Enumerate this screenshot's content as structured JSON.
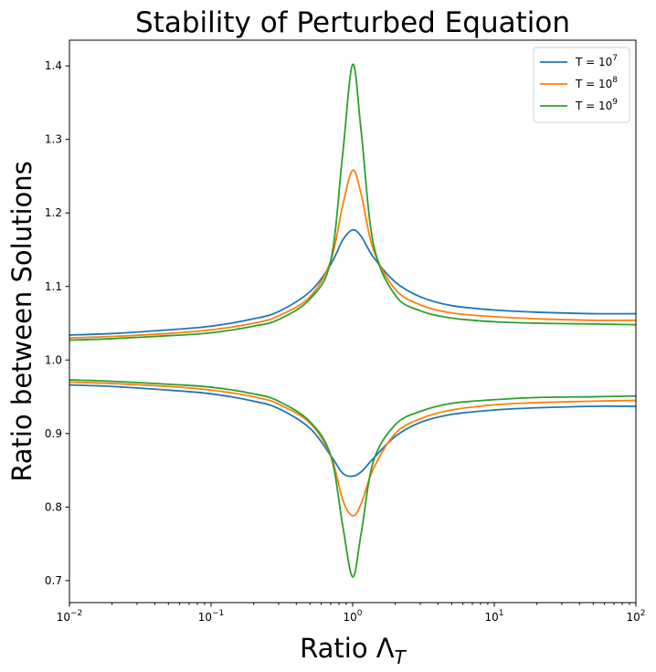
{
  "chart_data": {
    "type": "line",
    "title": "Stability of Perturbed Equation",
    "xlabel": "Ratio Λ",
    "xlabel_subscript": "T",
    "ylabel": "Ratio between Solutions",
    "xscale": "log",
    "xlim": [
      0.01,
      100
    ],
    "ylim": [
      0.67,
      1.435
    ],
    "grid": false,
    "legend_position": "top-right",
    "x_ticks": [
      {
        "value": 0.01,
        "base": "10",
        "exp": "−2"
      },
      {
        "value": 0.1,
        "base": "10",
        "exp": "−1"
      },
      {
        "value": 1,
        "base": "10",
        "exp": "0"
      },
      {
        "value": 10,
        "base": "10",
        "exp": "1"
      },
      {
        "value": 100,
        "base": "10",
        "exp": "2"
      }
    ],
    "y_ticks": [
      {
        "value": 0.7,
        "label": "0.7"
      },
      {
        "value": 0.8,
        "label": "0.8"
      },
      {
        "value": 0.9,
        "label": "0.9"
      },
      {
        "value": 1.0,
        "label": "1.0"
      },
      {
        "value": 1.1,
        "label": "1.1"
      },
      {
        "value": 1.2,
        "label": "1.2"
      },
      {
        "value": 1.3,
        "label": "1.3"
      },
      {
        "value": 1.4,
        "label": "1.4"
      }
    ],
    "x": [
      0.01,
      0.02,
      0.05,
      0.1,
      0.2,
      0.3,
      0.5,
      0.7,
      0.85,
      1.0,
      1.15,
      1.4,
      2.0,
      3.0,
      5.0,
      10,
      20,
      50,
      100
    ],
    "series": [
      {
        "name": "T = 10^7",
        "legend_base": "T = 10",
        "legend_exp": "7",
        "color": "#1f77b4",
        "upper": [
          1.034,
          1.036,
          1.041,
          1.046,
          1.056,
          1.066,
          1.093,
          1.13,
          1.163,
          1.177,
          1.168,
          1.14,
          1.106,
          1.086,
          1.074,
          1.068,
          1.065,
          1.063,
          1.063
        ],
        "lower": [
          0.966,
          0.964,
          0.959,
          0.954,
          0.944,
          0.934,
          0.907,
          0.87,
          0.846,
          0.842,
          0.848,
          0.866,
          0.896,
          0.915,
          0.926,
          0.932,
          0.935,
          0.937,
          0.937
        ]
      },
      {
        "name": "T = 10^8",
        "legend_base": "T = 10",
        "legend_exp": "8",
        "color": "#ff7f0e",
        "upper": [
          1.03,
          1.032,
          1.036,
          1.041,
          1.05,
          1.06,
          1.086,
          1.135,
          1.21,
          1.258,
          1.225,
          1.15,
          1.096,
          1.075,
          1.064,
          1.059,
          1.056,
          1.054,
          1.054
        ],
        "lower": [
          0.97,
          0.968,
          0.964,
          0.959,
          0.95,
          0.94,
          0.914,
          0.87,
          0.81,
          0.788,
          0.805,
          0.852,
          0.9,
          0.92,
          0.932,
          0.939,
          0.942,
          0.944,
          0.945
        ]
      },
      {
        "name": "T = 10^9",
        "legend_base": "T = 10",
        "legend_exp": "9",
        "color": "#2ca02c",
        "upper": [
          1.027,
          1.029,
          1.033,
          1.037,
          1.046,
          1.055,
          1.083,
          1.135,
          1.28,
          1.402,
          1.31,
          1.158,
          1.088,
          1.067,
          1.057,
          1.052,
          1.05,
          1.049,
          1.048
        ],
        "lower": [
          0.973,
          0.971,
          0.967,
          0.963,
          0.954,
          0.944,
          0.916,
          0.87,
          0.775,
          0.705,
          0.765,
          0.862,
          0.912,
          0.93,
          0.941,
          0.946,
          0.949,
          0.95,
          0.951
        ]
      }
    ]
  }
}
